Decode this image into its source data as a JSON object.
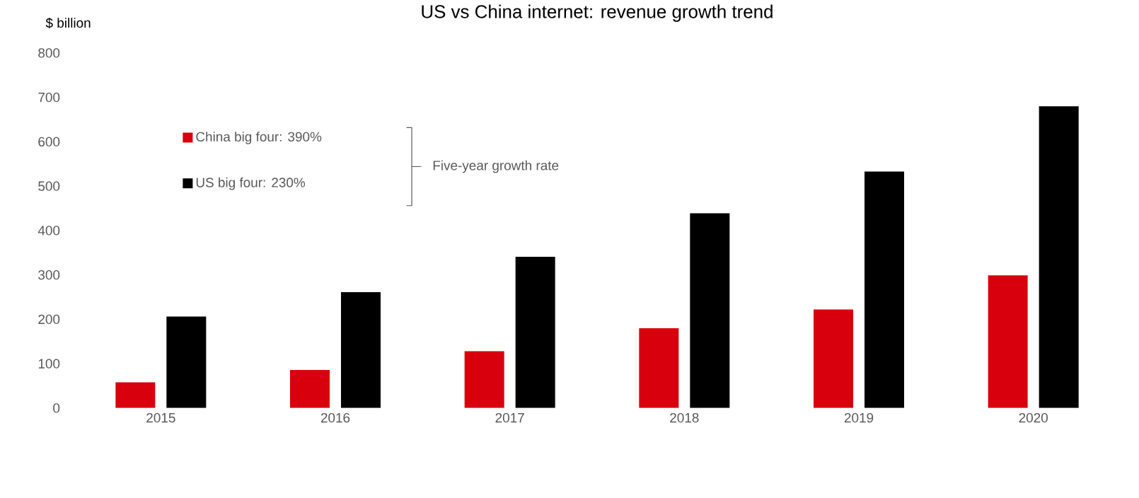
{
  "chart_data": {
    "type": "bar",
    "title": "US vs China internet: revenue growth trend",
    "ylabel": "$ billion",
    "categories": [
      "2015",
      "2016",
      "2017",
      "2018",
      "2019",
      "2020"
    ],
    "series": [
      {
        "name": "China big four: 390%",
        "color": "#d9000d",
        "values": [
          58,
          86,
          128,
          180,
          222,
          299
        ]
      },
      {
        "name": "US big four: 230%",
        "color": "#000000",
        "values": [
          206,
          261,
          341,
          439,
          533,
          680
        ]
      }
    ],
    "ylim": [
      0,
      800
    ],
    "yticks": [
      0,
      100,
      200,
      300,
      400,
      500,
      600,
      700,
      800
    ],
    "legend": "top left",
    "grid": false,
    "annotations": [
      "Five-year growth rate"
    ]
  }
}
